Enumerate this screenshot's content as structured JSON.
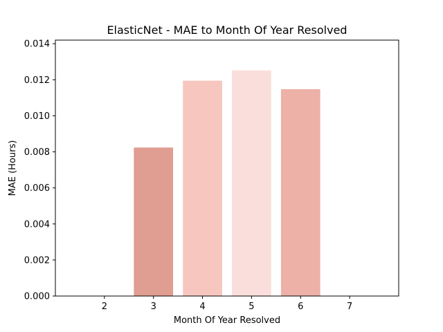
{
  "chart_data": {
    "type": "bar",
    "title": "ElasticNet - MAE to Month Of Year Resolved",
    "xlabel": "Month Of Year Resolved",
    "ylabel": "MAE (Hours)",
    "categories": [
      "3",
      "4",
      "5",
      "6"
    ],
    "values": [
      0.00824,
      0.01195,
      0.01252,
      0.01148
    ],
    "bar_colors": [
      "#e09d91",
      "#f6c6bf",
      "#fadedb",
      "#edb1a8"
    ],
    "x_ticks": [
      "2",
      "3",
      "4",
      "5",
      "6",
      "7"
    ],
    "y_ticks": [
      "0.000",
      "0.002",
      "0.004",
      "0.006",
      "0.008",
      "0.010",
      "0.012",
      "0.014"
    ],
    "xlim": [
      1,
      8
    ],
    "ylim": [
      0,
      0.0142
    ],
    "grid": false,
    "legend": "none"
  }
}
